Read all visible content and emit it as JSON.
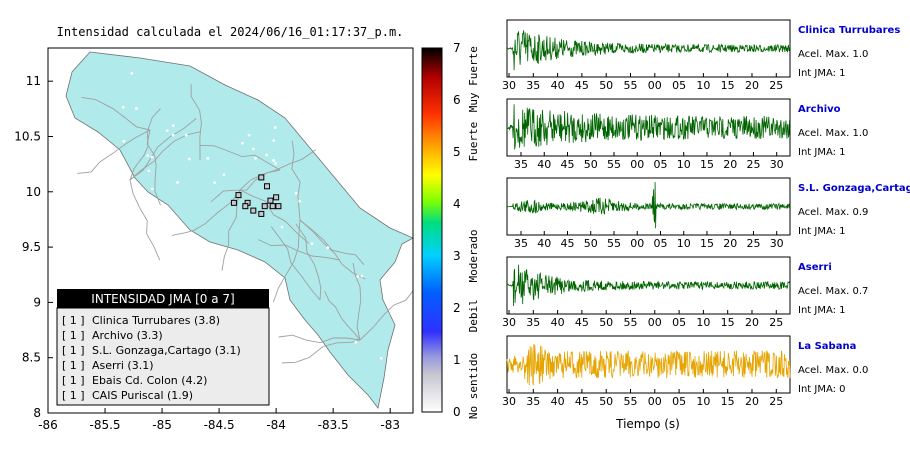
{
  "chart_data": [
    {
      "type": "map",
      "title": "Intensidad calculada el 2024/06/16_01:17:37_p.m.",
      "x_ticks": [
        "-86",
        "-85.5",
        "-85",
        "-84.5",
        "-84",
        "-83.5",
        "-83"
      ],
      "y_ticks": [
        "8",
        "8.5",
        "9",
        "9.5",
        "10",
        "10.5",
        "11"
      ],
      "xlim": [
        -86,
        -82.8
      ],
      "ylim": [
        8,
        11.3
      ],
      "land_color": "#b0eaea",
      "road_color": "#999999",
      "colorbar": {
        "ticks": [
          "0",
          "1",
          "2",
          "3",
          "4",
          "5",
          "6",
          "7"
        ],
        "min": 0,
        "max": 7,
        "categories": [
          "No sentido",
          "Debil",
          "Moderado",
          "Fuerte",
          "Muy Fuerte"
        ]
      },
      "legend": {
        "title": "INTENSIDAD JMA [0 a 7]",
        "entries": [
          {
            "marker": "[ 1 ]",
            "text": "Clinica Turrubares (3.8)"
          },
          {
            "marker": "[ 1 ]",
            "text": "Archivo (3.3)"
          },
          {
            "marker": "[ 1 ]",
            "text": "S.L. Gonzaga,Cartago (3.1)"
          },
          {
            "marker": "[ 1 ]",
            "text": "Aserri (3.1)"
          },
          {
            "marker": "[ 1 ]",
            "text": "Ebais Cd. Colon (4.2)"
          },
          {
            "marker": "[ 1 ]",
            "text": "CAIS Puriscal (1.9)"
          }
        ]
      },
      "stations": [
        {
          "lon": -84.13,
          "lat": 10.13,
          "jma": 1
        },
        {
          "lon": -84.08,
          "lat": 10.05,
          "jma": 1
        },
        {
          "lon": -84.33,
          "lat": 9.97,
          "jma": 1
        },
        {
          "lon": -84.25,
          "lat": 9.9,
          "jma": 1
        },
        {
          "lon": -84.37,
          "lat": 9.9,
          "jma": 1
        },
        {
          "lon": -84.2,
          "lat": 9.83,
          "jma": 1
        },
        {
          "lon": -84.1,
          "lat": 9.87,
          "jma": 1
        },
        {
          "lon": -84.05,
          "lat": 9.92,
          "jma": 1
        },
        {
          "lon": -83.98,
          "lat": 9.87,
          "jma": 1
        },
        {
          "lon": -84.27,
          "lat": 9.87,
          "jma": 1
        },
        {
          "lon": -84.03,
          "lat": 9.87,
          "jma": 1
        },
        {
          "lon": -84.0,
          "lat": 9.95,
          "jma": 1
        },
        {
          "lon": -84.13,
          "lat": 9.8,
          "jma": 1
        }
      ]
    },
    {
      "type": "line",
      "title": "Clinica Turrubares",
      "info": [
        "Acel. Max. 1.0",
        "Int JMA: 1"
      ],
      "x_ticks": [
        "30",
        "35",
        "40",
        "45",
        "50",
        "55",
        "00",
        "05",
        "10",
        "15",
        "20",
        "25"
      ],
      "color": "#006400",
      "amp": 1.0
    },
    {
      "type": "line",
      "title": "Archivo",
      "info": [
        "Acel. Max. 1.0",
        "Int JMA: 1"
      ],
      "x_ticks": [
        "35",
        "40",
        "45",
        "50",
        "55",
        "00",
        "05",
        "10",
        "15",
        "20",
        "25",
        "30"
      ],
      "color": "#006400",
      "amp": 1.0
    },
    {
      "type": "line",
      "title": "S.L. Gonzaga,Cartago",
      "info": [
        "Acel. Max. 0.9",
        "Int JMA: 1"
      ],
      "x_ticks": [
        "35",
        "40",
        "45",
        "50",
        "55",
        "00",
        "05",
        "10",
        "15",
        "20",
        "25",
        "30"
      ],
      "color": "#006400",
      "amp": 0.9
    },
    {
      "type": "line",
      "title": "Aserri",
      "info": [
        "Acel. Max. 0.7",
        "Int JMA: 1"
      ],
      "x_ticks": [
        "30",
        "35",
        "40",
        "45",
        "50",
        "55",
        "00",
        "05",
        "10",
        "15",
        "20",
        "25"
      ],
      "color": "#006400",
      "amp": 0.7
    },
    {
      "type": "line",
      "title": "La Sabana",
      "info": [
        "Acel. Max. 0.0",
        "Int JMA: 0"
      ],
      "x_ticks": [
        "30",
        "35",
        "40",
        "45",
        "50",
        "55",
        "00",
        "05",
        "10",
        "15",
        "20",
        "25"
      ],
      "color": "#e6a400",
      "amp": 0.0
    }
  ],
  "xlabel": "Tiempo (s)",
  "colors": {
    "title_blue": "#0000cc"
  }
}
